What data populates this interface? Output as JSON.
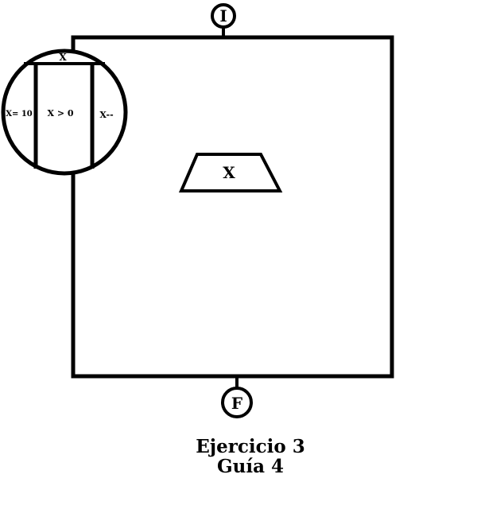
{
  "start_label": "I",
  "end_label": "F",
  "loop": {
    "top_var": "X",
    "init": "X= 10",
    "condition": "X > 0",
    "update": "X--"
  },
  "output_var": "X",
  "caption": {
    "line1": "Ejercicio 3",
    "line2": "Guía 4"
  }
}
